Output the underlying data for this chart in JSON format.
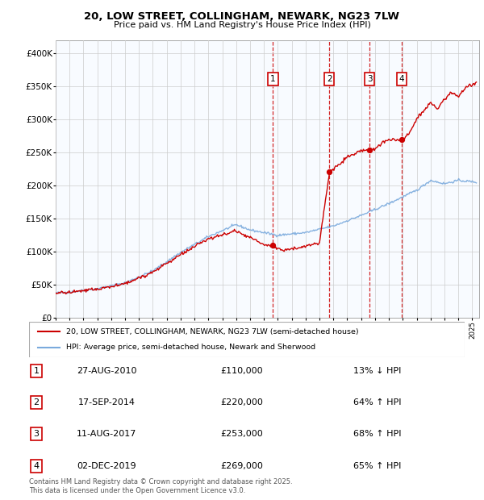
{
  "title": "20, LOW STREET, COLLINGHAM, NEWARK, NG23 7LW",
  "subtitle": "Price paid vs. HM Land Registry's House Price Index (HPI)",
  "ylim": [
    0,
    420000
  ],
  "xlim_start": 1995.0,
  "xlim_end": 2025.5,
  "legend_line1": "20, LOW STREET, COLLINGHAM, NEWARK, NG23 7LW (semi-detached house)",
  "legend_line2": "HPI: Average price, semi-detached house, Newark and Sherwood",
  "sale_points": [
    {
      "num": 1,
      "year": 2010.65,
      "price": 110000,
      "label": "1"
    },
    {
      "num": 2,
      "year": 2014.71,
      "price": 220000,
      "label": "2"
    },
    {
      "num": 3,
      "year": 2017.61,
      "price": 253000,
      "label": "3"
    },
    {
      "num": 4,
      "year": 2019.92,
      "price": 269000,
      "label": "4"
    }
  ],
  "table_data": [
    {
      "num": "1",
      "date": "27-AUG-2010",
      "price": "£110,000",
      "change": "13% ↓ HPI"
    },
    {
      "num": "2",
      "date": "17-SEP-2014",
      "price": "£220,000",
      "change": "64% ↑ HPI"
    },
    {
      "num": "3",
      "date": "11-AUG-2017",
      "price": "£253,000",
      "change": "68% ↑ HPI"
    },
    {
      "num": "4",
      "date": "02-DEC-2019",
      "price": "£269,000",
      "change": "65% ↑ HPI"
    }
  ],
  "footer": "Contains HM Land Registry data © Crown copyright and database right 2025.\nThis data is licensed under the Open Government Licence v3.0.",
  "hpi_color": "#7aaadd",
  "price_color": "#cc0000",
  "background_color": "#ffffff",
  "grid_color": "#cccccc",
  "sale_vline_color": "#cc0000",
  "highlight_color": "#ddeeff"
}
